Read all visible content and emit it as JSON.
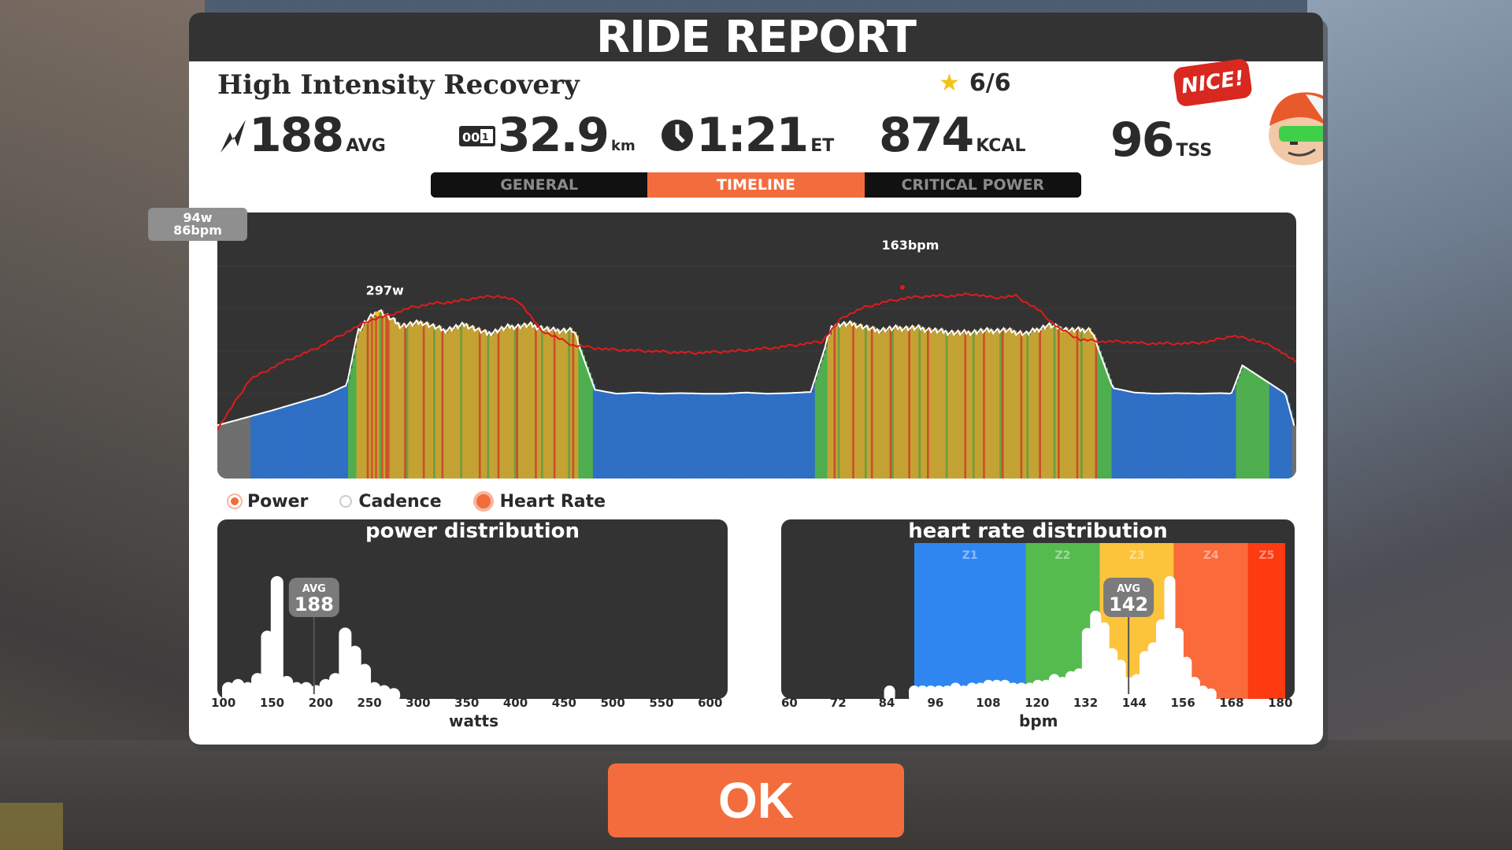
{
  "header": {
    "title": "RIDE REPORT"
  },
  "workout": {
    "name": "High Intensity Recovery",
    "stars": "6/6"
  },
  "stats": {
    "power": {
      "value": "188",
      "unit": "AVG"
    },
    "distance": {
      "value": "32.9",
      "unit": "km"
    },
    "time": {
      "value": "1:21",
      "unit": "ET"
    },
    "calories": {
      "value": "874",
      "unit": "KCAL"
    },
    "tss": {
      "value": "96",
      "unit": "TSS"
    }
  },
  "badge": {
    "text": "NICE!"
  },
  "tabs": [
    {
      "label": "GENERAL",
      "active": false
    },
    {
      "label": "TIMELINE",
      "active": true
    },
    {
      "label": "CRITICAL POWER",
      "active": false
    }
  ],
  "timeline": {
    "tooltip_power": "94w",
    "tooltip_hr": "86bpm",
    "peak_hr_label": "163bpm",
    "peak_power_label": "297w"
  },
  "legend": {
    "power": "Power",
    "cadence": "Cadence",
    "heart_rate": "Heart Rate"
  },
  "power_distribution": {
    "title": "power distribution",
    "avg_label": "AVG",
    "avg_value": "188",
    "x_ticks": [
      "100",
      "150",
      "200",
      "250",
      "300",
      "350",
      "400",
      "450",
      "500",
      "550",
      "600"
    ],
    "x_label": "watts"
  },
  "hr_distribution": {
    "title": "heart rate distribution",
    "avg_label": "AVG",
    "avg_value": "142",
    "zones": [
      "Z1",
      "Z2",
      "Z3",
      "Z4",
      "Z5"
    ],
    "zone_colors": [
      "#2f86f0",
      "#55bb4f",
      "#fcc43b",
      "#fb6a3a",
      "#fe3a10"
    ],
    "x_ticks": [
      "60",
      "72",
      "84",
      "96",
      "108",
      "120",
      "132",
      "144",
      "156",
      "168",
      "180"
    ],
    "x_label": "bpm"
  },
  "ok_button": {
    "label": "OK"
  },
  "colors": {
    "accent": "#f36c3d",
    "panel_dark": "#333333",
    "hr_line": "#e01b1b"
  },
  "chart_data": [
    {
      "type": "line",
      "title": "",
      "series": [
        {
          "name": "Heart Rate",
          "x": [
            0,
            3,
            6,
            9,
            12,
            14,
            16,
            18,
            20,
            22,
            24,
            26,
            28,
            30,
            33,
            36,
            40,
            44,
            48,
            52,
            56,
            58,
            60,
            62,
            64,
            66,
            68,
            70,
            72,
            74,
            76,
            78,
            80,
            82,
            84,
            86,
            88,
            90,
            92,
            94,
            96,
            98,
            100
          ],
          "y": [
            86,
            112,
            121,
            128,
            137,
            143,
            146,
            150,
            152,
            153,
            155,
            156,
            153,
            138,
            130,
            128,
            127,
            126,
            127,
            129,
            132,
            145,
            150,
            153,
            155,
            156,
            156,
            157,
            155,
            156,
            149,
            139,
            133,
            132,
            132,
            131,
            131,
            131,
            132,
            135,
            133,
            129,
            121
          ]
        },
        {
          "name": "Power",
          "x": [
            0,
            5,
            10,
            12,
            13,
            14,
            15,
            17,
            19,
            21,
            23,
            25,
            27,
            29,
            31,
            33,
            35,
            37,
            39,
            41,
            43,
            45,
            47,
            49,
            51,
            53,
            55,
            57,
            59,
            61,
            63,
            65,
            67,
            69,
            71,
            73,
            75,
            77,
            79,
            81,
            83,
            85,
            87,
            89,
            91,
            93,
            94,
            95,
            97,
            99,
            100
          ],
          "y": [
            94,
            120,
            148,
            165,
            260,
            282,
            297,
            270,
            276,
            262,
            272,
            256,
            268,
            271,
            262,
            262,
            157,
            150,
            152,
            150,
            151,
            150,
            150,
            152,
            150,
            151,
            153,
            272,
            273,
            262,
            266,
            266,
            260,
            257,
            261,
            262,
            256,
            271,
            262,
            263,
            160,
            152,
            150,
            151,
            150,
            151,
            150,
            200,
            175,
            150,
            80
          ]
        }
      ]
    },
    {
      "type": "bar",
      "title": "power distribution",
      "xlabel": "watts",
      "categories": [
        100,
        110,
        120,
        130,
        140,
        150,
        160,
        170,
        180,
        190,
        200,
        210,
        220,
        230,
        240,
        250,
        260,
        270,
        280,
        290,
        300,
        310
      ],
      "values": [
        8,
        10,
        8,
        14,
        42,
        78,
        12,
        8,
        8,
        6,
        10,
        14,
        44,
        32,
        20,
        8,
        6,
        4,
        0,
        0,
        0,
        0
      ],
      "xlim": [
        100,
        600
      ],
      "annotation": {
        "label": "AVG",
        "value": 188
      }
    },
    {
      "type": "bar",
      "title": "heart rate distribution",
      "xlabel": "bpm",
      "categories": [
        84,
        88,
        90,
        92,
        94,
        96,
        98,
        100,
        102,
        104,
        106,
        108,
        110,
        112,
        114,
        116,
        118,
        120,
        122,
        124,
        126,
        128,
        130,
        132,
        134,
        136,
        138,
        140,
        142,
        144,
        146,
        148,
        150,
        152,
        154,
        156,
        158,
        160,
        162
      ],
      "values": [
        6,
        0,
        6,
        6,
        6,
        6,
        6,
        8,
        6,
        8,
        8,
        10,
        10,
        10,
        8,
        8,
        8,
        10,
        10,
        14,
        12,
        16,
        18,
        46,
        58,
        50,
        32,
        24,
        12,
        14,
        30,
        36,
        52,
        82,
        46,
        26,
        12,
        6,
        4
      ],
      "xlim": [
        60,
        180
      ],
      "annotation": {
        "label": "AVG",
        "value": 142
      }
    }
  ]
}
